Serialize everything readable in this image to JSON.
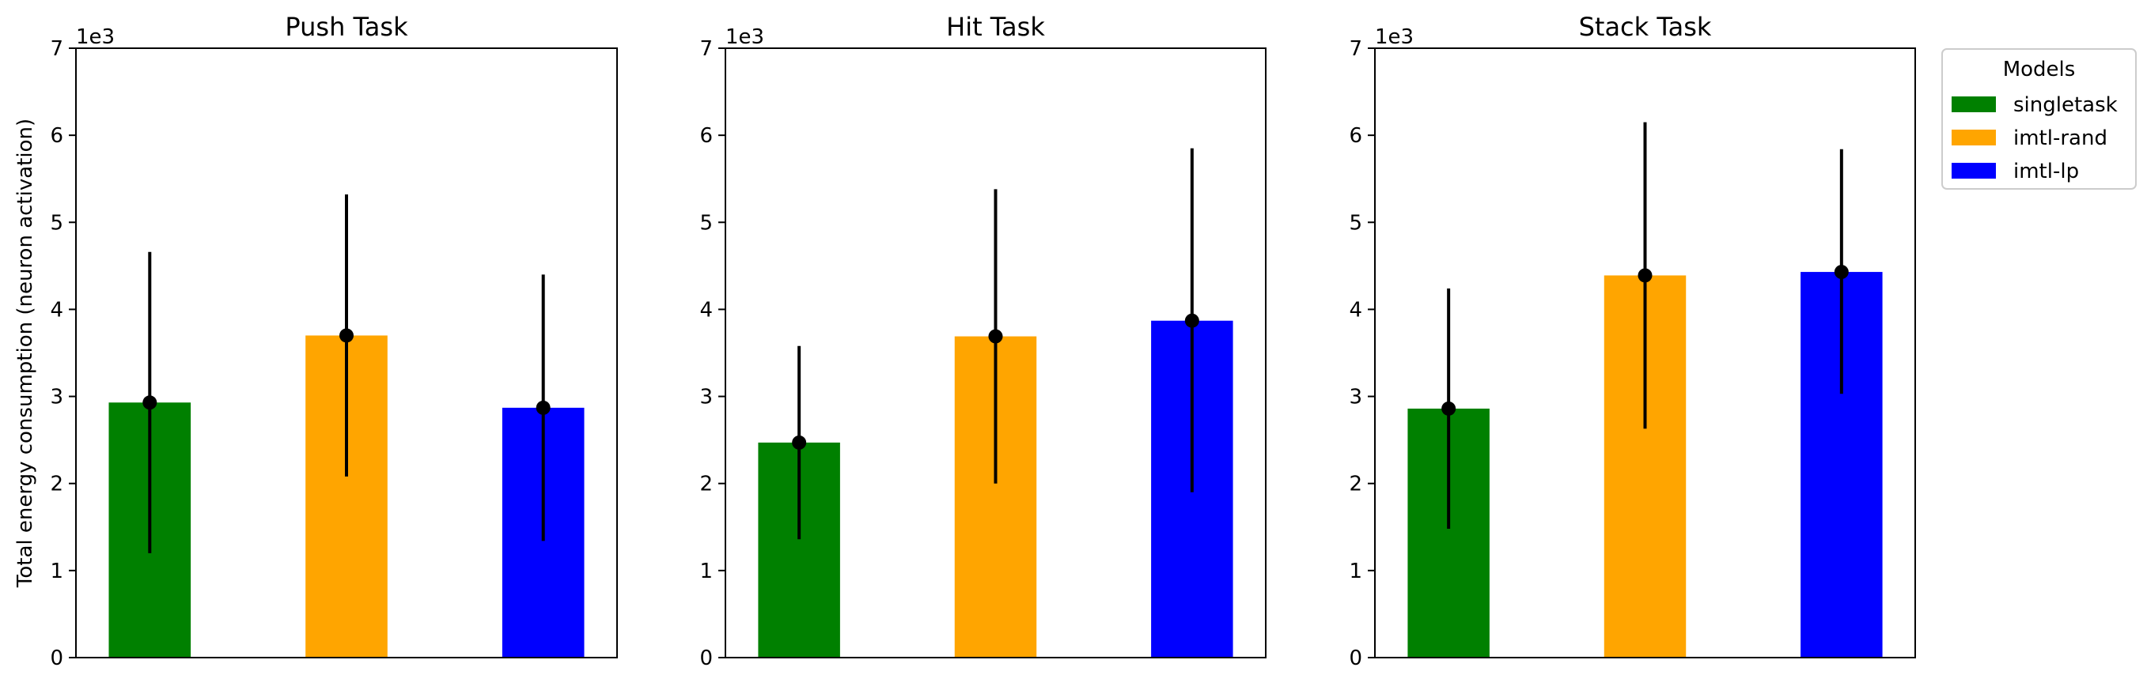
{
  "chart_data": [
    {
      "type": "bar",
      "title": "Push Task",
      "ylabel": "Total energy consumption (neuron activation)",
      "y_multiplier": "1e3",
      "ylim": [
        0,
        7
      ],
      "yticks": [
        "0",
        "1",
        "2",
        "3",
        "4",
        "5",
        "6",
        "7"
      ],
      "categories": [
        "singletask",
        "imtl-rand",
        "imtl-lp"
      ],
      "values": [
        2.93,
        3.7,
        2.87
      ],
      "error_low": [
        1.2,
        2.08,
        1.34
      ],
      "error_high": [
        4.66,
        5.32,
        4.4
      ],
      "colors": [
        "#008000",
        "#ffa500",
        "#0000ff"
      ]
    },
    {
      "type": "bar",
      "title": "Hit Task",
      "y_multiplier": "1e3",
      "ylim": [
        0,
        7
      ],
      "yticks": [
        "0",
        "1",
        "2",
        "3",
        "4",
        "5",
        "6",
        "7"
      ],
      "categories": [
        "singletask",
        "imtl-rand",
        "imtl-lp"
      ],
      "values": [
        2.47,
        3.69,
        3.87
      ],
      "error_low": [
        1.36,
        2.0,
        1.9
      ],
      "error_high": [
        3.58,
        5.38,
        5.85
      ],
      "colors": [
        "#008000",
        "#ffa500",
        "#0000ff"
      ]
    },
    {
      "type": "bar",
      "title": "Stack Task",
      "y_multiplier": "1e3",
      "ylim": [
        0,
        7
      ],
      "yticks": [
        "0",
        "1",
        "2",
        "3",
        "4",
        "5",
        "6",
        "7"
      ],
      "categories": [
        "singletask",
        "imtl-rand",
        "imtl-lp"
      ],
      "values": [
        2.86,
        4.39,
        4.43
      ],
      "error_low": [
        1.48,
        2.63,
        3.03
      ],
      "error_high": [
        4.24,
        6.15,
        5.84
      ],
      "colors": [
        "#008000",
        "#ffa500",
        "#0000ff"
      ]
    }
  ],
  "legend": {
    "title": "Models",
    "placement": "outside-right",
    "items": [
      {
        "label": "singletask",
        "color": "#008000"
      },
      {
        "label": "imtl-rand",
        "color": "#ffa500"
      },
      {
        "label": "imtl-lp",
        "color": "#0000ff"
      }
    ]
  }
}
